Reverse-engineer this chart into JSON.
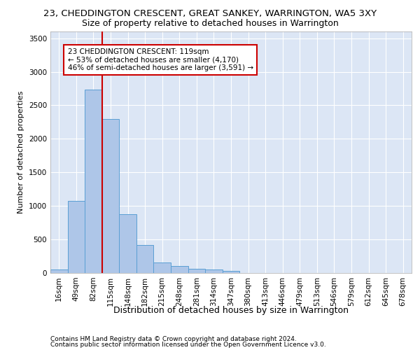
{
  "title1": "23, CHEDDINGTON CRESCENT, GREAT SANKEY, WARRINGTON, WA5 3XY",
  "title2": "Size of property relative to detached houses in Warrington",
  "xlabel": "Distribution of detached houses by size in Warrington",
  "ylabel": "Number of detached properties",
  "footer1": "Contains HM Land Registry data © Crown copyright and database right 2024.",
  "footer2": "Contains public sector information licensed under the Open Government Licence v3.0.",
  "annotation_line1": "23 CHEDDINGTON CRESCENT: 119sqm",
  "annotation_line2": "← 53% of detached houses are smaller (4,170)",
  "annotation_line3": "46% of semi-detached houses are larger (3,591) →",
  "bar_labels": [
    "16sqm",
    "49sqm",
    "82sqm",
    "115sqm",
    "148sqm",
    "182sqm",
    "215sqm",
    "248sqm",
    "281sqm",
    "314sqm",
    "347sqm",
    "380sqm",
    "413sqm",
    "446sqm",
    "479sqm",
    "513sqm",
    "546sqm",
    "579sqm",
    "612sqm",
    "645sqm",
    "678sqm"
  ],
  "bar_values": [
    50,
    1080,
    2730,
    2300,
    880,
    420,
    155,
    100,
    60,
    50,
    30,
    5,
    5,
    0,
    0,
    0,
    0,
    0,
    0,
    0,
    0
  ],
  "bar_color": "#aec6e8",
  "bar_edge_color": "#5a9fd4",
  "ylim": [
    0,
    3600
  ],
  "yticks": [
    0,
    500,
    1000,
    1500,
    2000,
    2500,
    3000,
    3500
  ],
  "background_color": "#dce6f5",
  "grid_color": "#ffffff",
  "annotation_box_color": "#ffffff",
  "annotation_box_edge": "#cc0000",
  "red_line_color": "#cc0000",
  "title1_fontsize": 9.5,
  "title2_fontsize": 9,
  "xlabel_fontsize": 9,
  "ylabel_fontsize": 8,
  "tick_fontsize": 7.5,
  "annotation_fontsize": 7.5,
  "footer_fontsize": 6.5
}
